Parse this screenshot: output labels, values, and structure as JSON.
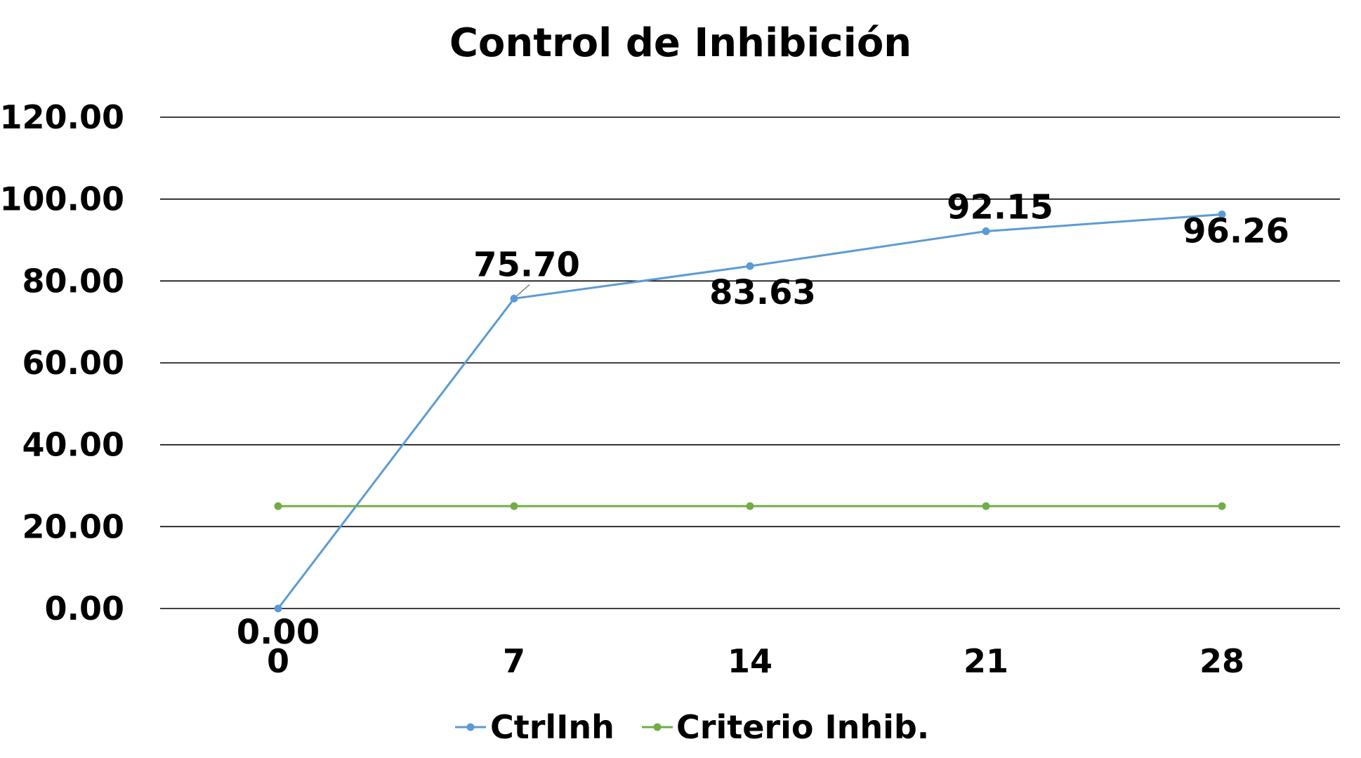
{
  "chart_data": {
    "type": "line",
    "title": "Control de Inhibición",
    "xlabel": "",
    "ylabel": "",
    "categories": [
      "0",
      "7",
      "14",
      "21",
      "28"
    ],
    "ylim": [
      0,
      120
    ],
    "yticks": [
      "0.00",
      "20.00",
      "40.00",
      "60.00",
      "80.00",
      "100.00",
      "120.00"
    ],
    "grid": true,
    "legend_position": "bottom",
    "series": [
      {
        "name": "CtrlInh",
        "values": [
          0.0,
          75.7,
          83.63,
          92.15,
          96.26
        ],
        "labels": [
          "0.00",
          "75.70",
          "83.63",
          "92.15",
          "96.26"
        ],
        "color": "#5B9BD5"
      },
      {
        "name": "Criterio Inhib.",
        "values": [
          25,
          25,
          25,
          25,
          25
        ],
        "color": "#70AD47"
      }
    ]
  }
}
